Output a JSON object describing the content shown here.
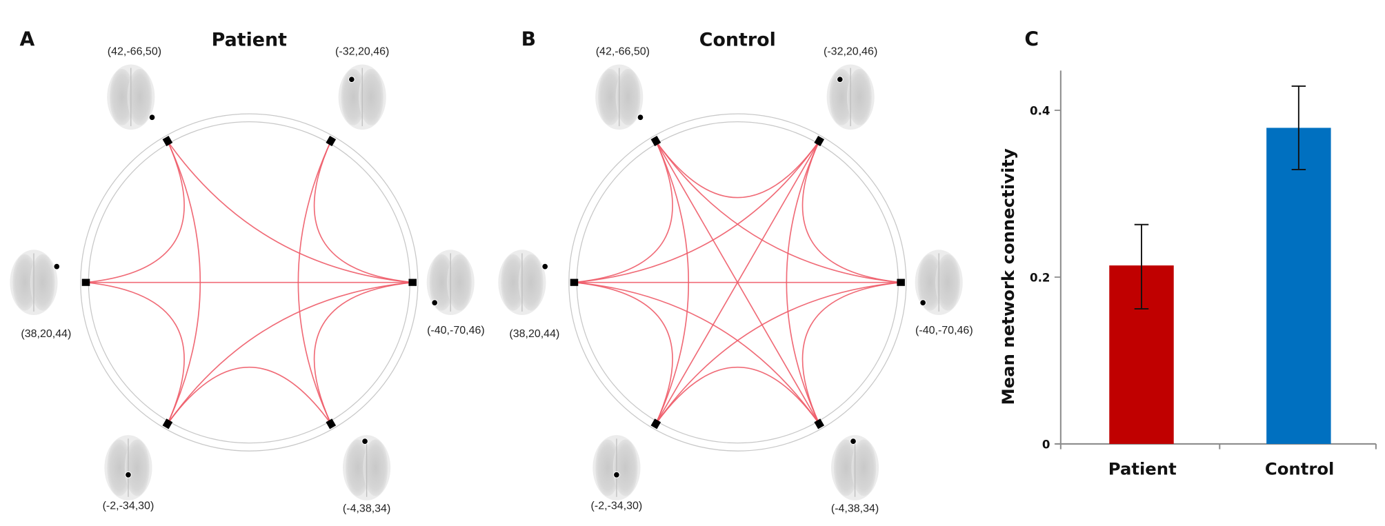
{
  "figure": {
    "panels": [
      {
        "letter": "A",
        "title": "Patient",
        "nodes": [
          {
            "label": "(42,-66,50)",
            "position": "top-left"
          },
          {
            "label": "(-32,20,46)",
            "position": "top-right"
          },
          {
            "label": "(-40,-70,46)",
            "position": "right"
          },
          {
            "label": "(-4,38,34)",
            "position": "bottom-right"
          },
          {
            "label": "(-2,-34,30)",
            "position": "bottom-left"
          },
          {
            "label": "(38,20,44)",
            "position": "left"
          }
        ],
        "edges": [
          [
            0,
            5
          ],
          [
            0,
            4
          ],
          [
            0,
            2
          ],
          [
            1,
            2
          ],
          [
            1,
            3
          ],
          [
            5,
            2
          ],
          [
            5,
            4
          ],
          [
            4,
            2
          ],
          [
            4,
            3
          ],
          [
            3,
            2
          ]
        ]
      },
      {
        "letter": "B",
        "title": "Control",
        "nodes": [
          {
            "label": "(42,-66,50)",
            "position": "top-left"
          },
          {
            "label": "(-32,20,46)",
            "position": "top-right"
          },
          {
            "label": "(-40,-70,46)",
            "position": "right"
          },
          {
            "label": "(-4,38,34)",
            "position": "bottom-right"
          },
          {
            "label": "(-2,-34,30)",
            "position": "bottom-left"
          },
          {
            "label": "(38,20,44)",
            "position": "left"
          }
        ],
        "edges": [
          [
            0,
            1
          ],
          [
            0,
            2
          ],
          [
            0,
            3
          ],
          [
            0,
            4
          ],
          [
            0,
            5
          ],
          [
            1,
            2
          ],
          [
            1,
            3
          ],
          [
            1,
            4
          ],
          [
            1,
            5
          ],
          [
            2,
            3
          ],
          [
            2,
            4
          ],
          [
            2,
            5
          ],
          [
            3,
            4
          ],
          [
            3,
            5
          ],
          [
            4,
            5
          ]
        ]
      }
    ],
    "edge_color": "#ee5b68",
    "ring_color": "#c8c8c8",
    "node_color": "#000000"
  },
  "chart_data": {
    "letter": "C",
    "type": "bar",
    "categories": [
      "Patient",
      "Control"
    ],
    "values": [
      0.214,
      0.379
    ],
    "error_bars": [
      [
        0.162,
        0.263
      ],
      [
        0.329,
        0.429
      ]
    ],
    "colors": [
      "#c00000",
      "#0070c0"
    ],
    "ylabel": "Mean network connectivity",
    "xlabel": "",
    "ylim": [
      0,
      0.47
    ],
    "yticks": [
      {
        "value": 0,
        "label": "0"
      },
      {
        "value": 0.2,
        "label": "0.2"
      },
      {
        "value": 0.4,
        "label": "0.4"
      }
    ],
    "grid": false
  }
}
